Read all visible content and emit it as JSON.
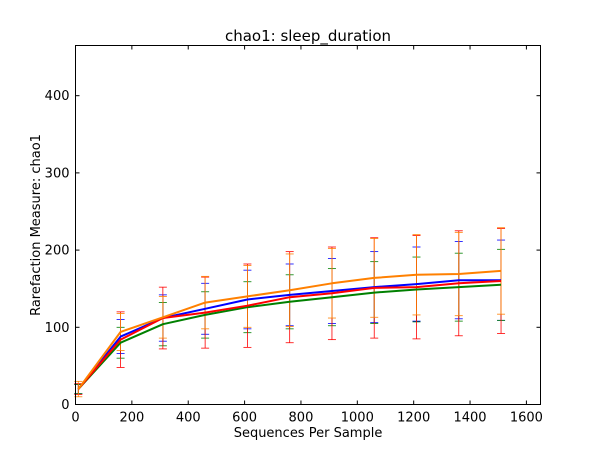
{
  "chart_data": {
    "type": "line",
    "title": "chao1: sleep_duration",
    "xlabel": "Sequences Per Sample",
    "ylabel": "Rarefaction Measure: chao1",
    "xlim": [
      0,
      1650
    ],
    "ylim": [
      0,
      465
    ],
    "x_ticks": [
      0,
      200,
      400,
      600,
      800,
      1000,
      1200,
      1400,
      1600
    ],
    "y_ticks": [
      0,
      100,
      200,
      300,
      400
    ],
    "grid": false,
    "legend": "none",
    "x": [
      10,
      160,
      310,
      460,
      610,
      760,
      910,
      1060,
      1210,
      1360,
      1510
    ],
    "series": [
      {
        "color": "#0000ff",
        "values": [
          20,
          88,
          112,
          124,
          136,
          142,
          147,
          152,
          156,
          161,
          161
        ],
        "err": [
          6,
          22,
          30,
          33,
          38,
          40,
          42,
          46,
          48,
          50,
          52
        ]
      },
      {
        "color": "#008000",
        "values": [
          20,
          80,
          104,
          116,
          126,
          133,
          139,
          145,
          149,
          152,
          155
        ],
        "err": [
          6,
          20,
          28,
          30,
          33,
          35,
          37,
          40,
          42,
          44,
          46
        ]
      },
      {
        "color": "#ff0000",
        "values": [
          20,
          84,
          112,
          119,
          128,
          139,
          144,
          151,
          152,
          157,
          160
        ],
        "err": [
          7,
          36,
          40,
          46,
          54,
          59,
          60,
          65,
          67,
          68,
          68
        ]
      },
      {
        "color": "#ff8000",
        "values": [
          20,
          94,
          113,
          132,
          140,
          148,
          157,
          164,
          168,
          169,
          173
        ],
        "err": [
          10,
          24,
          27,
          34,
          40,
          47,
          45,
          51,
          52,
          54,
          56
        ]
      }
    ]
  }
}
